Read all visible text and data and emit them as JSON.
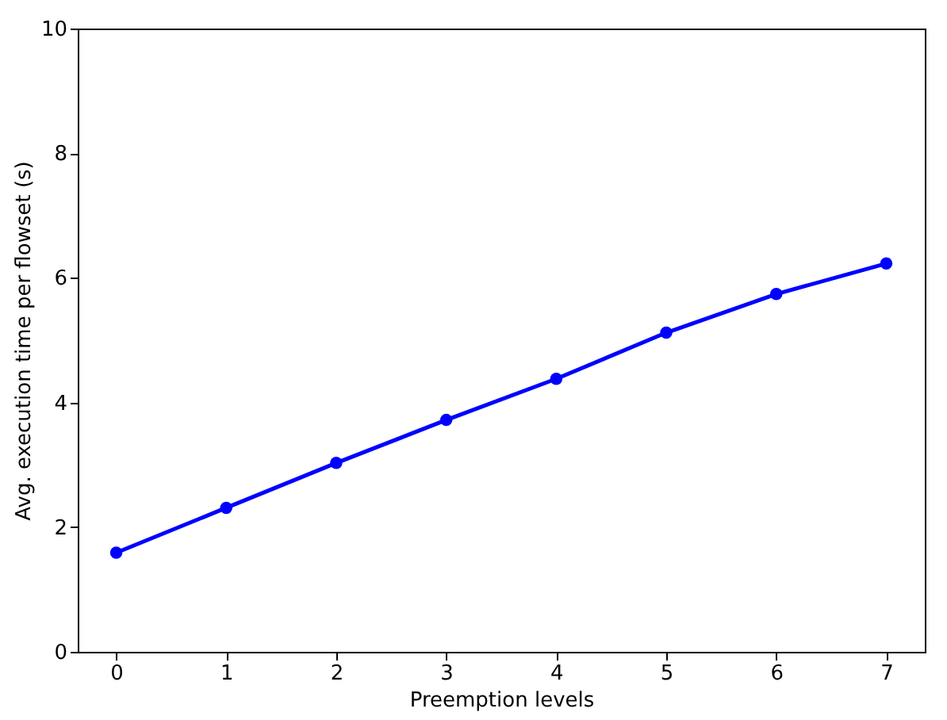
{
  "chart_data": {
    "type": "line",
    "xlabel": "Preemption levels",
    "ylabel": "Avg. execution time per flowset (s)",
    "x": [
      0,
      1,
      2,
      3,
      4,
      5,
      6,
      7
    ],
    "series": [
      {
        "color": "#0000ff",
        "values": [
          1.59,
          2.31,
          3.03,
          3.72,
          4.38,
          5.12,
          5.74,
          6.23
        ]
      }
    ],
    "xlim": [
      -0.35,
      7.35
    ],
    "xticks": [
      0,
      1,
      2,
      3,
      4,
      5,
      6,
      7
    ],
    "ylim": [
      0,
      10
    ],
    "yticks": [
      0,
      2,
      4,
      6,
      8,
      10
    ],
    "grid": false,
    "marker": "circle",
    "line_style": "solid"
  }
}
